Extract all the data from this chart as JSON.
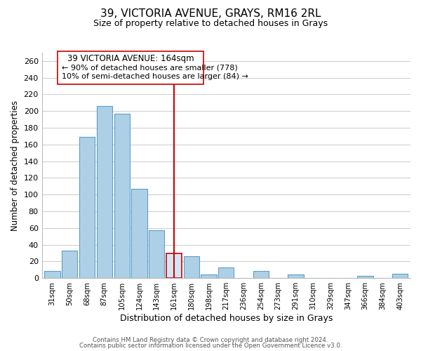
{
  "title": "39, VICTORIA AVENUE, GRAYS, RM16 2RL",
  "subtitle": "Size of property relative to detached houses in Grays",
  "xlabel": "Distribution of detached houses by size in Grays",
  "ylabel": "Number of detached properties",
  "bar_labels": [
    "31sqm",
    "50sqm",
    "68sqm",
    "87sqm",
    "105sqm",
    "124sqm",
    "143sqm",
    "161sqm",
    "180sqm",
    "198sqm",
    "217sqm",
    "236sqm",
    "254sqm",
    "273sqm",
    "291sqm",
    "310sqm",
    "329sqm",
    "347sqm",
    "366sqm",
    "384sqm",
    "403sqm"
  ],
  "bar_values": [
    9,
    33,
    169,
    206,
    197,
    107,
    57,
    30,
    26,
    4,
    13,
    0,
    9,
    0,
    4,
    0,
    0,
    0,
    3,
    0,
    5
  ],
  "bar_color": "#aed0e6",
  "bar_edge_color": "#5b9ec9",
  "highlight_index": 7,
  "highlight_color": "#d0e8f5",
  "highlight_edge_color": "#cc0000",
  "vline_color": "#cc0000",
  "ylim": [
    0,
    270
  ],
  "yticks": [
    0,
    20,
    40,
    60,
    80,
    100,
    120,
    140,
    160,
    180,
    200,
    220,
    240,
    260
  ],
  "annotation_title": "39 VICTORIA AVENUE: 164sqm",
  "annotation_line1": "← 90% of detached houses are smaller (778)",
  "annotation_line2": "10% of semi-detached houses are larger (84) →",
  "footer1": "Contains HM Land Registry data © Crown copyright and database right 2024.",
  "footer2": "Contains public sector information licensed under the Open Government Licence v3.0.",
  "grid_color": "#cccccc",
  "ann_box_color": "#cc0000",
  "ann_facecolor": "white"
}
